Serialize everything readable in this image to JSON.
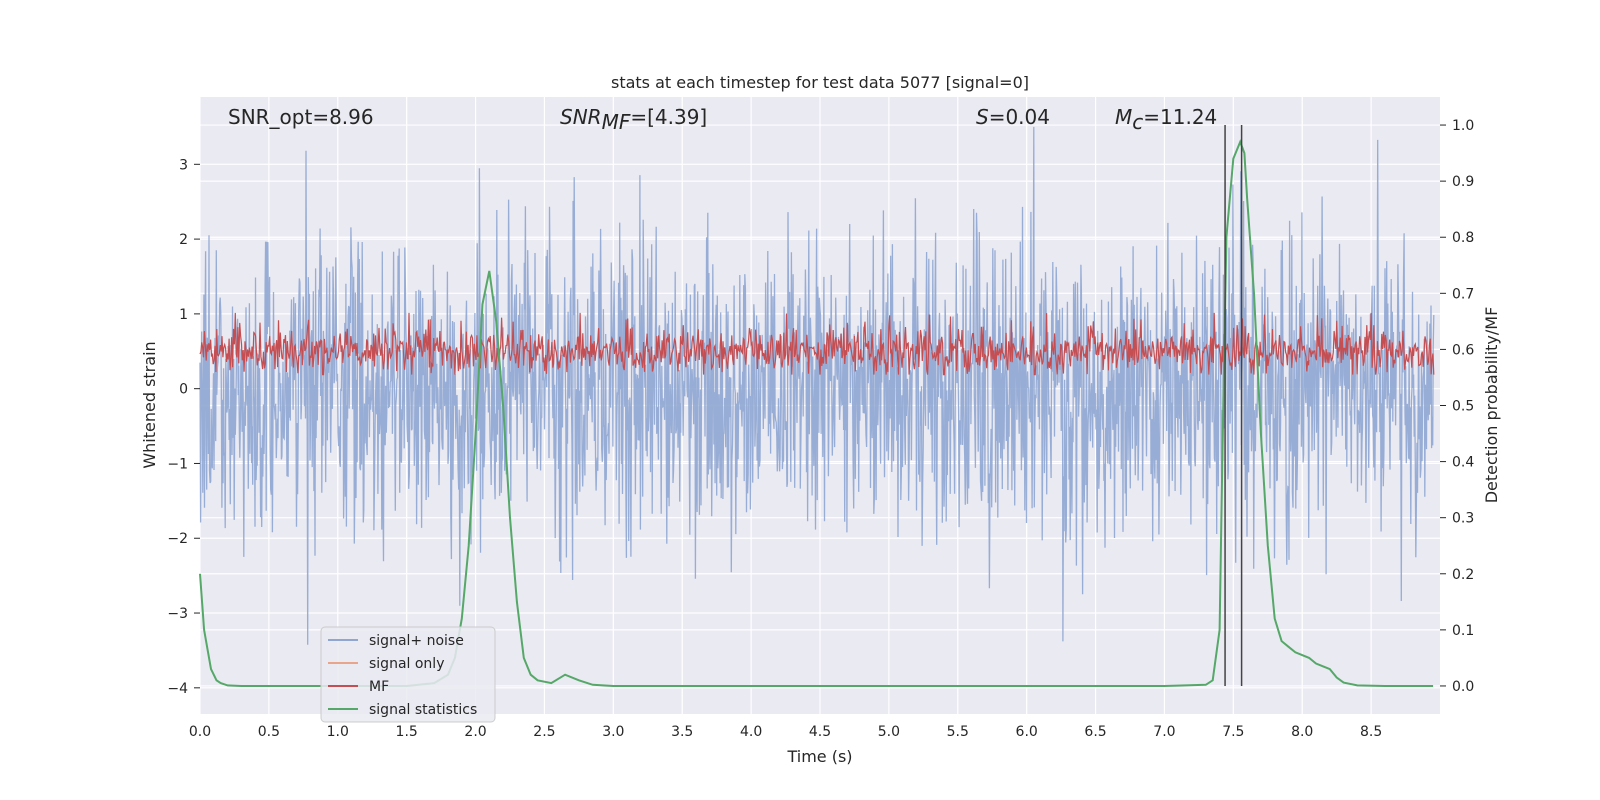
{
  "chart_data": {
    "type": "line",
    "title": "stats at each timestep for test data 5077 [signal=0]",
    "xlabel": "Time (s)",
    "ylabel_left": "Whitened strain",
    "ylabel_right": "Detection probability/MF",
    "xlim": [
      0,
      9.0
    ],
    "ylim_left": [
      -4.35,
      3.9
    ],
    "ylim_right": [
      -0.05,
      1.05
    ],
    "xticks": [
      "0.0",
      "0.5",
      "1.0",
      "1.5",
      "2.0",
      "2.5",
      "3.0",
      "3.5",
      "4.0",
      "4.5",
      "5.0",
      "5.5",
      "6.0",
      "6.5",
      "7.0",
      "7.5",
      "8.0",
      "8.5"
    ],
    "yticks_left": [
      "−4",
      "−3",
      "−2",
      "−1",
      "0",
      "1",
      "2",
      "3"
    ],
    "yticks_right": [
      "0.0",
      "0.1",
      "0.2",
      "0.3",
      "0.4",
      "0.5",
      "0.6",
      "0.7",
      "0.8",
      "0.9",
      "1.0"
    ],
    "annotations": {
      "snr_opt": "SNR_opt=8.96",
      "snr_mf_main": "SNR",
      "snr_mf_sub": "MF",
      "snr_mf_value": "=[4.39]",
      "s_main": "S",
      "s_value": "=0.04",
      "mc_main": "M",
      "mc_sub": "c",
      "mc_value": "=11.24"
    },
    "vlines_x": [
      7.44,
      7.56
    ],
    "series": [
      {
        "name": "signal+ noise",
        "axis": "left",
        "color": "#8fa6d1",
        "description": "whitened strain noise, roughly within -3.5 to 3.5",
        "envelope": {
          "min": -3.5,
          "max": 3.5,
          "typical_abs": 1.6
        }
      },
      {
        "name": "signal only",
        "axis": "left",
        "color": "#e8a58c",
        "values": []
      },
      {
        "name": "MF",
        "axis": "right",
        "color": "#c44e52",
        "description": "matched filter output, fluctuating between about 0.56 and 0.67",
        "envelope": {
          "min": 0.555,
          "max": 0.665
        }
      },
      {
        "name": "signal statistics",
        "axis": "right",
        "color": "#55a868",
        "x": [
          0.0,
          0.03,
          0.08,
          0.12,
          0.15,
          0.2,
          0.3,
          0.5,
          1.0,
          1.5,
          1.7,
          1.8,
          1.85,
          1.9,
          1.95,
          2.0,
          2.05,
          2.1,
          2.15,
          2.2,
          2.25,
          2.3,
          2.35,
          2.4,
          2.45,
          2.55,
          2.65,
          2.75,
          2.85,
          3.0,
          4.0,
          5.0,
          6.0,
          7.0,
          7.3,
          7.35,
          7.4,
          7.42,
          7.45,
          7.5,
          7.55,
          7.58,
          7.6,
          7.65,
          7.7,
          7.75,
          7.8,
          7.85,
          7.9,
          7.95,
          8.05,
          8.1,
          8.15,
          8.2,
          8.25,
          8.3,
          8.4,
          8.6,
          8.95
        ],
        "values": [
          0.2,
          0.1,
          0.03,
          0.01,
          0.005,
          0.001,
          0.0,
          0.0,
          0.0,
          0.0,
          0.005,
          0.02,
          0.05,
          0.12,
          0.25,
          0.45,
          0.68,
          0.74,
          0.65,
          0.5,
          0.3,
          0.15,
          0.05,
          0.02,
          0.01,
          0.005,
          0.02,
          0.01,
          0.002,
          0.0,
          0.0,
          0.0,
          0.0,
          0.0,
          0.002,
          0.01,
          0.1,
          0.4,
          0.8,
          0.94,
          0.97,
          0.95,
          0.87,
          0.7,
          0.45,
          0.25,
          0.12,
          0.08,
          0.07,
          0.06,
          0.05,
          0.04,
          0.035,
          0.03,
          0.015,
          0.006,
          0.001,
          0.0,
          0.0
        ]
      }
    ],
    "legend": {
      "position": "lower-left",
      "entries": [
        "signal+ noise",
        "signal only",
        "MF",
        "signal statistics"
      ]
    }
  }
}
